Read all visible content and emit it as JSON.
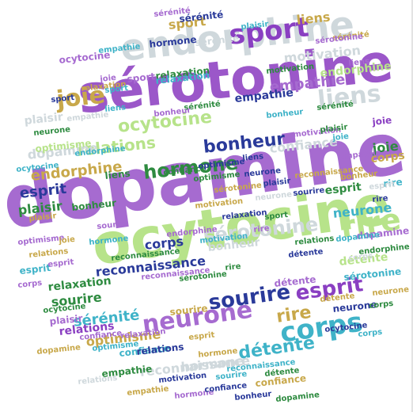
{
  "words": [
    {
      "text": "dopamine",
      "color": "#a66bd0"
    },
    {
      "text": "sérotonine",
      "color": "#9b57c9"
    },
    {
      "text": "ocytocine",
      "color": "#b7e38a"
    },
    {
      "text": "endorphine",
      "color": "#cfd8dc"
    },
    {
      "text": "rire",
      "color": "#b7e38a"
    },
    {
      "text": "corps",
      "color": "#3fb3c8"
    },
    {
      "text": "sport",
      "color": "#8a3fc2"
    },
    {
      "text": "joie",
      "color": "#c8a84a"
    },
    {
      "text": "liens",
      "color": "#cfd8dc"
    },
    {
      "text": "neurone",
      "color": "#a66bd0"
    },
    {
      "text": "esprit",
      "color": "#8a3fc2"
    },
    {
      "text": "sourire",
      "color": "#2a3a9a"
    },
    {
      "text": "hormone",
      "color": "#2e8b40"
    },
    {
      "text": "bonheur",
      "color": "#2a3a9a"
    },
    {
      "text": "sérotonine",
      "color": "#cfd8dc"
    },
    {
      "text": "détente",
      "color": "#3fb3c8"
    },
    {
      "text": "relations",
      "color": "#b7e38a"
    },
    {
      "text": "ocytocine",
      "color": "#b7e38a"
    },
    {
      "text": "confiance",
      "color": "#cfd8dc"
    },
    {
      "text": "empathie",
      "color": "#a66bd0"
    },
    {
      "text": "plaisir",
      "color": "#cfd8dc"
    },
    {
      "text": "motivation",
      "color": "#cfd8dc"
    },
    {
      "text": "dopamine",
      "color": "#cfd8dc"
    },
    {
      "text": "endorphine",
      "color": "#c8a84a"
    },
    {
      "text": "esprit",
      "color": "#2a3a9a"
    },
    {
      "text": "plaisir",
      "color": "#2e8b40"
    },
    {
      "text": "neurone",
      "color": "#3fb3c8"
    },
    {
      "text": "reconnaissance",
      "color": "#2a3a9a"
    },
    {
      "text": "relaxation",
      "color": "#2e8b40"
    },
    {
      "text": "sourire",
      "color": "#2e8b40"
    },
    {
      "text": "sérénité",
      "color": "#3fb3c8"
    },
    {
      "text": "optimisme",
      "color": "#c8a84a"
    },
    {
      "text": "relations",
      "color": "#8a3fc2"
    },
    {
      "text": "reconnaissance",
      "color": "#cfd8dc"
    },
    {
      "text": "détente",
      "color": "#b7e38a"
    },
    {
      "text": "corps",
      "color": "#2a3a9a"
    },
    {
      "text": "liens",
      "color": "#c8a84a"
    },
    {
      "text": "relaxation",
      "color": "#2e8b40"
    },
    {
      "text": "joie",
      "color": "#2e8b40"
    },
    {
      "text": "esprit",
      "color": "#2e8b40"
    },
    {
      "text": "rire",
      "color": "#c8a84a"
    },
    {
      "text": "sport",
      "color": "#c8a84a"
    },
    {
      "text": "sérénité",
      "color": "#2a3a9a"
    },
    {
      "text": "optimisme",
      "color": "#b7e38a"
    },
    {
      "text": "hormone",
      "color": "#cfd8dc"
    },
    {
      "text": "empathie",
      "color": "#2e8b40"
    },
    {
      "text": "confiance",
      "color": "#c8a84a"
    },
    {
      "text": "bonheur",
      "color": "#cfd8dc"
    },
    {
      "text": "motivation",
      "color": "#3fb3c8"
    },
    {
      "text": "endorphine",
      "color": "#b7e38a"
    },
    {
      "text": "sérotonine",
      "color": "#3fb3c8"
    },
    {
      "text": "dopamine",
      "color": "#a66bd0"
    },
    {
      "text": "neurone",
      "color": "#2a3a9a"
    },
    {
      "text": "empathie",
      "color": "#2a3a9a"
    },
    {
      "text": "joie",
      "color": "#8a3fc2"
    },
    {
      "text": "corps",
      "color": "#c8a84a"
    },
    {
      "text": "sérénité",
      "color": "#cfd8dc"
    },
    {
      "text": "ocytocine",
      "color": "#a66bd0"
    },
    {
      "text": "relaxation",
      "color": "#3fb3c8"
    },
    {
      "text": "bonheur",
      "color": "#2e8b40"
    },
    {
      "text": "liens",
      "color": "#2e8b40"
    },
    {
      "text": "sport",
      "color": "#a66bd0"
    },
    {
      "text": "confiance",
      "color": "#3fb3c8"
    },
    {
      "text": "hormone",
      "color": "#2a3a9a"
    },
    {
      "text": "plaisir",
      "color": "#a66bd0"
    },
    {
      "text": "esprit",
      "color": "#3fb3c8"
    },
    {
      "text": "détente",
      "color": "#a66bd0"
    },
    {
      "text": "relations",
      "color": "#2a3a9a"
    },
    {
      "text": "sourire",
      "color": "#c8a84a"
    },
    {
      "text": "rire",
      "color": "#3fb3c8"
    },
    {
      "text": "motivation",
      "color": "#a66bd0"
    },
    {
      "text": "optimisme",
      "color": "#2e8b40"
    },
    {
      "text": "reconnaissance",
      "color": "#3fb3c8"
    },
    {
      "text": "sérotonine",
      "color": "#2e8b40"
    },
    {
      "text": "bonheur",
      "color": "#c8a84a"
    },
    {
      "text": "empathie",
      "color": "#3fb3c8"
    },
    {
      "text": "sérénité",
      "color": "#2e8b40"
    },
    {
      "text": "neurone",
      "color": "#c8a84a"
    },
    {
      "text": "plaisir",
      "color": "#3fb3c8"
    },
    {
      "text": "corps",
      "color": "#2e8b40"
    },
    {
      "text": "ocytocine",
      "color": "#2a3a9a"
    },
    {
      "text": "endorphine",
      "color": "#2e8b40"
    },
    {
      "text": "sport",
      "color": "#2a3a9a"
    },
    {
      "text": "confiance",
      "color": "#a66bd0"
    },
    {
      "text": "hormone",
      "color": "#a66bd0"
    },
    {
      "text": "détente",
      "color": "#c8a84a"
    },
    {
      "text": "liens",
      "color": "#a66bd0"
    },
    {
      "text": "relaxation",
      "color": "#c8a84a"
    },
    {
      "text": "optimisme",
      "color": "#a66bd0"
    },
    {
      "text": "motivation",
      "color": "#2e8b40"
    },
    {
      "text": "esprit",
      "color": "#cfd8dc"
    },
    {
      "text": "sourire",
      "color": "#3fb3c8"
    },
    {
      "text": "joie",
      "color": "#3fb3c8"
    },
    {
      "text": "relations",
      "color": "#cfd8dc"
    },
    {
      "text": "neurone",
      "color": "#2e8b40"
    },
    {
      "text": "empathie",
      "color": "#c8a84a"
    },
    {
      "text": "dopamine",
      "color": "#3fb3c8"
    },
    {
      "text": "reconnaissance",
      "color": "#c8a84a"
    },
    {
      "text": "bonheur",
      "color": "#a66bd0"
    },
    {
      "text": "sérénité",
      "color": "#c8a84a"
    },
    {
      "text": "ocytocine",
      "color": "#3fb3c8"
    },
    {
      "text": "rire",
      "color": "#2e8b40"
    },
    {
      "text": "corps",
      "color": "#a66bd0"
    },
    {
      "text": "plaisir",
      "color": "#c8a84a"
    },
    {
      "text": "hormone",
      "color": "#3fb3c8"
    },
    {
      "text": "sérotonine",
      "color": "#c8a84a"
    },
    {
      "text": "endorphine",
      "color": "#3fb3c8"
    },
    {
      "text": "liens",
      "color": "#3fb3c8"
    },
    {
      "text": "confiance",
      "color": "#2e8b40"
    },
    {
      "text": "sport",
      "color": "#2e8b40"
    },
    {
      "text": "détente",
      "color": "#2e8b40"
    },
    {
      "text": "relaxation",
      "color": "#a66bd0"
    },
    {
      "text": "esprit",
      "color": "#c8a84a"
    },
    {
      "text": "motivation",
      "color": "#c8a84a"
    },
    {
      "text": "sourire",
      "color": "#a66bd0"
    },
    {
      "text": "optimisme",
      "color": "#3fb3c8"
    },
    {
      "text": "joie",
      "color": "#a66bd0"
    },
    {
      "text": "neurone",
      "color": "#cfd8dc"
    },
    {
      "text": "relations",
      "color": "#2e8b40"
    },
    {
      "text": "empathie",
      "color": "#cfd8dc"
    },
    {
      "text": "bonheur",
      "color": "#3fb3c8"
    },
    {
      "text": "reconnaissance",
      "color": "#a66bd0"
    },
    {
      "text": "corps",
      "color": "#cfd8dc"
    },
    {
      "text": "sérénité",
      "color": "#a66bd0"
    },
    {
      "text": "plaisir",
      "color": "#2a3a9a"
    },
    {
      "text": "dopamine",
      "color": "#2e8b40"
    },
    {
      "text": "rire",
      "color": "#a66bd0"
    },
    {
      "text": "hormone",
      "color": "#c8a84a"
    },
    {
      "text": "ocytocine",
      "color": "#2e8b40"
    },
    {
      "text": "liens",
      "color": "#2a3a9a"
    },
    {
      "text": "endorphine",
      "color": "#a66bd0"
    },
    {
      "text": "confiance",
      "color": "#2a3a9a"
    },
    {
      "text": "sport",
      "color": "#3fb3c8"
    },
    {
      "text": "détente",
      "color": "#2a3a9a"
    },
    {
      "text": "relaxation",
      "color": "#2a3a9a"
    },
    {
      "text": "sérotonine",
      "color": "#a66bd0"
    },
    {
      "text": "motivation",
      "color": "#2a3a9a"
    },
    {
      "text": "esprit",
      "color": "#a66bd0"
    },
    {
      "text": "sourire",
      "color": "#2a3a9a"
    },
    {
      "text": "optimisme",
      "color": "#2a3a9a"
    },
    {
      "text": "joie",
      "color": "#c8a84a"
    },
    {
      "text": "neurone",
      "color": "#2a3a9a"
    },
    {
      "text": "relations",
      "color": "#c8a84a"
    },
    {
      "text": "empathie",
      "color": "#a66bd0"
    },
    {
      "text": "bonheur",
      "color": "#2a3a9a"
    },
    {
      "text": "reconnaissance",
      "color": "#2e8b40"
    },
    {
      "text": "corps",
      "color": "#3fb3c8"
    },
    {
      "text": "sérénité",
      "color": "#2e8b40"
    },
    {
      "text": "plaisir",
      "color": "#2e8b40"
    },
    {
      "text": "dopamine",
      "color": "#c8a84a"
    },
    {
      "text": "rire",
      "color": "#2a3a9a"
    }
  ]
}
